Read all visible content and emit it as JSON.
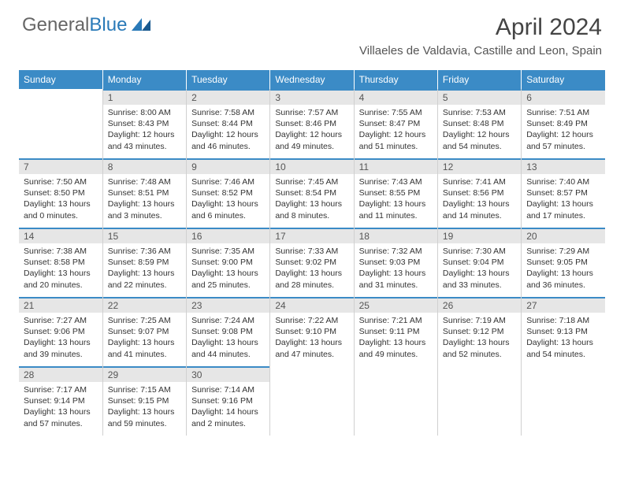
{
  "logo": {
    "text1": "General",
    "text2": "Blue"
  },
  "title": "April 2024",
  "location": "Villaeles de Valdavia, Castille and Leon, Spain",
  "colors": {
    "header_bg": "#3b8bc6",
    "header_text": "#ffffff",
    "daynum_bg": "#e6e6e6",
    "border": "#d0d0d0",
    "text": "#333333",
    "logo_gray": "#666666",
    "logo_blue": "#2a7ab8"
  },
  "weekdays": [
    "Sunday",
    "Monday",
    "Tuesday",
    "Wednesday",
    "Thursday",
    "Friday",
    "Saturday"
  ],
  "start_offset": 1,
  "days": [
    {
      "n": 1,
      "sr": "8:00 AM",
      "ss": "8:43 PM",
      "dl": "12 hours and 43 minutes."
    },
    {
      "n": 2,
      "sr": "7:58 AM",
      "ss": "8:44 PM",
      "dl": "12 hours and 46 minutes."
    },
    {
      "n": 3,
      "sr": "7:57 AM",
      "ss": "8:46 PM",
      "dl": "12 hours and 49 minutes."
    },
    {
      "n": 4,
      "sr": "7:55 AM",
      "ss": "8:47 PM",
      "dl": "12 hours and 51 minutes."
    },
    {
      "n": 5,
      "sr": "7:53 AM",
      "ss": "8:48 PM",
      "dl": "12 hours and 54 minutes."
    },
    {
      "n": 6,
      "sr": "7:51 AM",
      "ss": "8:49 PM",
      "dl": "12 hours and 57 minutes."
    },
    {
      "n": 7,
      "sr": "7:50 AM",
      "ss": "8:50 PM",
      "dl": "13 hours and 0 minutes."
    },
    {
      "n": 8,
      "sr": "7:48 AM",
      "ss": "8:51 PM",
      "dl": "13 hours and 3 minutes."
    },
    {
      "n": 9,
      "sr": "7:46 AM",
      "ss": "8:52 PM",
      "dl": "13 hours and 6 minutes."
    },
    {
      "n": 10,
      "sr": "7:45 AM",
      "ss": "8:54 PM",
      "dl": "13 hours and 8 minutes."
    },
    {
      "n": 11,
      "sr": "7:43 AM",
      "ss": "8:55 PM",
      "dl": "13 hours and 11 minutes."
    },
    {
      "n": 12,
      "sr": "7:41 AM",
      "ss": "8:56 PM",
      "dl": "13 hours and 14 minutes."
    },
    {
      "n": 13,
      "sr": "7:40 AM",
      "ss": "8:57 PM",
      "dl": "13 hours and 17 minutes."
    },
    {
      "n": 14,
      "sr": "7:38 AM",
      "ss": "8:58 PM",
      "dl": "13 hours and 20 minutes."
    },
    {
      "n": 15,
      "sr": "7:36 AM",
      "ss": "8:59 PM",
      "dl": "13 hours and 22 minutes."
    },
    {
      "n": 16,
      "sr": "7:35 AM",
      "ss": "9:00 PM",
      "dl": "13 hours and 25 minutes."
    },
    {
      "n": 17,
      "sr": "7:33 AM",
      "ss": "9:02 PM",
      "dl": "13 hours and 28 minutes."
    },
    {
      "n": 18,
      "sr": "7:32 AM",
      "ss": "9:03 PM",
      "dl": "13 hours and 31 minutes."
    },
    {
      "n": 19,
      "sr": "7:30 AM",
      "ss": "9:04 PM",
      "dl": "13 hours and 33 minutes."
    },
    {
      "n": 20,
      "sr": "7:29 AM",
      "ss": "9:05 PM",
      "dl": "13 hours and 36 minutes."
    },
    {
      "n": 21,
      "sr": "7:27 AM",
      "ss": "9:06 PM",
      "dl": "13 hours and 39 minutes."
    },
    {
      "n": 22,
      "sr": "7:25 AM",
      "ss": "9:07 PM",
      "dl": "13 hours and 41 minutes."
    },
    {
      "n": 23,
      "sr": "7:24 AM",
      "ss": "9:08 PM",
      "dl": "13 hours and 44 minutes."
    },
    {
      "n": 24,
      "sr": "7:22 AM",
      "ss": "9:10 PM",
      "dl": "13 hours and 47 minutes."
    },
    {
      "n": 25,
      "sr": "7:21 AM",
      "ss": "9:11 PM",
      "dl": "13 hours and 49 minutes."
    },
    {
      "n": 26,
      "sr": "7:19 AM",
      "ss": "9:12 PM",
      "dl": "13 hours and 52 minutes."
    },
    {
      "n": 27,
      "sr": "7:18 AM",
      "ss": "9:13 PM",
      "dl": "13 hours and 54 minutes."
    },
    {
      "n": 28,
      "sr": "7:17 AM",
      "ss": "9:14 PM",
      "dl": "13 hours and 57 minutes."
    },
    {
      "n": 29,
      "sr": "7:15 AM",
      "ss": "9:15 PM",
      "dl": "13 hours and 59 minutes."
    },
    {
      "n": 30,
      "sr": "7:14 AM",
      "ss": "9:16 PM",
      "dl": "14 hours and 2 minutes."
    }
  ],
  "labels": {
    "sunrise": "Sunrise:",
    "sunset": "Sunset:",
    "daylight": "Daylight:"
  }
}
